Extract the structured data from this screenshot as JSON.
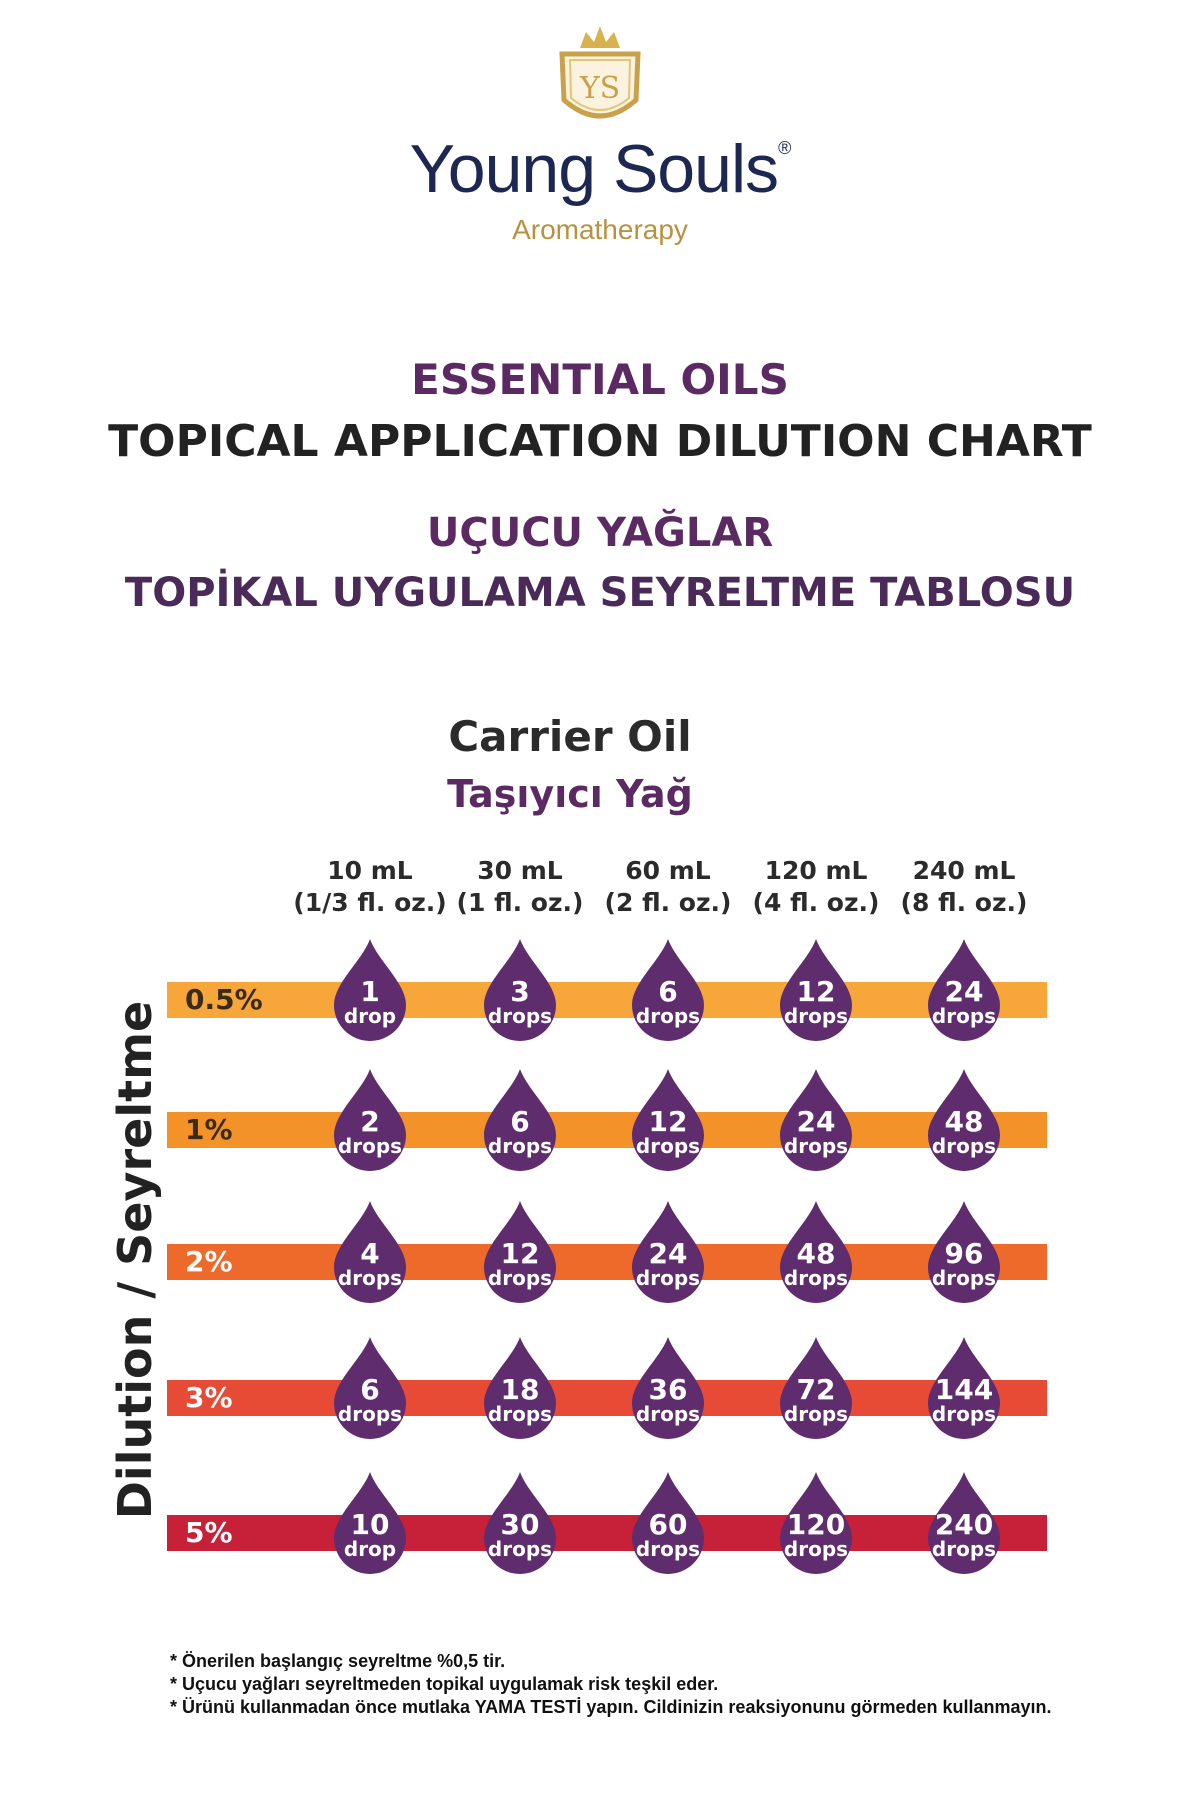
{
  "brand": {
    "logo_monogram": "YS",
    "name": "Young Souls",
    "registered_mark": "®",
    "subtitle": "Aromatherapy"
  },
  "titles": {
    "en_line1": "ESSENTIAL OILS",
    "en_line2": "TOPICAL APPLICATION DILUTION CHART",
    "tr_line1": "UÇUCU YAĞLAR",
    "tr_line2": "TOPİKAL UYGULAMA SEYRELTME TABLOSU"
  },
  "chart_data": {
    "type": "table",
    "column_title": "Carrier Oil",
    "column_title_tr": "Taşıyıcı Yağ",
    "row_axis_label": "Dilution  / Seyreltme",
    "columns": [
      {
        "ml": "10 mL",
        "oz": "(1/3 fl. oz.)"
      },
      {
        "ml": "30 mL",
        "oz": "(1 fl. oz.)"
      },
      {
        "ml": "60 mL",
        "oz": "(2 fl. oz.)"
      },
      {
        "ml": "120 mL",
        "oz": "(4 fl. oz.)"
      },
      {
        "ml": "240 mL",
        "oz": "(8 fl. oz.)"
      }
    ],
    "rows": [
      {
        "label": "0.5%",
        "color": "#f7a73a",
        "values": [
          1,
          3,
          6,
          12,
          24
        ],
        "units": [
          "drop",
          "drops",
          "drops",
          "drops",
          "drops"
        ]
      },
      {
        "label": "1%",
        "color": "#f39228",
        "values": [
          2,
          6,
          12,
          24,
          48
        ],
        "units": [
          "drops",
          "drops",
          "drops",
          "drops",
          "drops"
        ]
      },
      {
        "label": "2%",
        "color": "#ee6a2b",
        "values": [
          4,
          12,
          24,
          48,
          96
        ],
        "units": [
          "drops",
          "drops",
          "drops",
          "drops",
          "drops"
        ]
      },
      {
        "label": "3%",
        "color": "#e84b35",
        "values": [
          6,
          18,
          36,
          72,
          144
        ],
        "units": [
          "drops",
          "drops",
          "drops",
          "drops",
          "drops"
        ]
      },
      {
        "label": "5%",
        "color": "#c7213a",
        "values": [
          10,
          30,
          60,
          120,
          240
        ],
        "units": [
          "drop",
          "drops",
          "drops",
          "drops",
          "drops"
        ]
      }
    ],
    "drop_color": "#5f2c6e"
  },
  "notes": [
    "* Önerilen başlangıç seyreltme %0,5 tir.",
    "* Uçucu yağları seyreltmeden topikal uygulamak risk teşkil eder.",
    "* Ürünü kullanmadan önce mutlaka YAMA TESTİ yapın. Cildinizin reaksiyonunu görmeden kullanmayın."
  ]
}
